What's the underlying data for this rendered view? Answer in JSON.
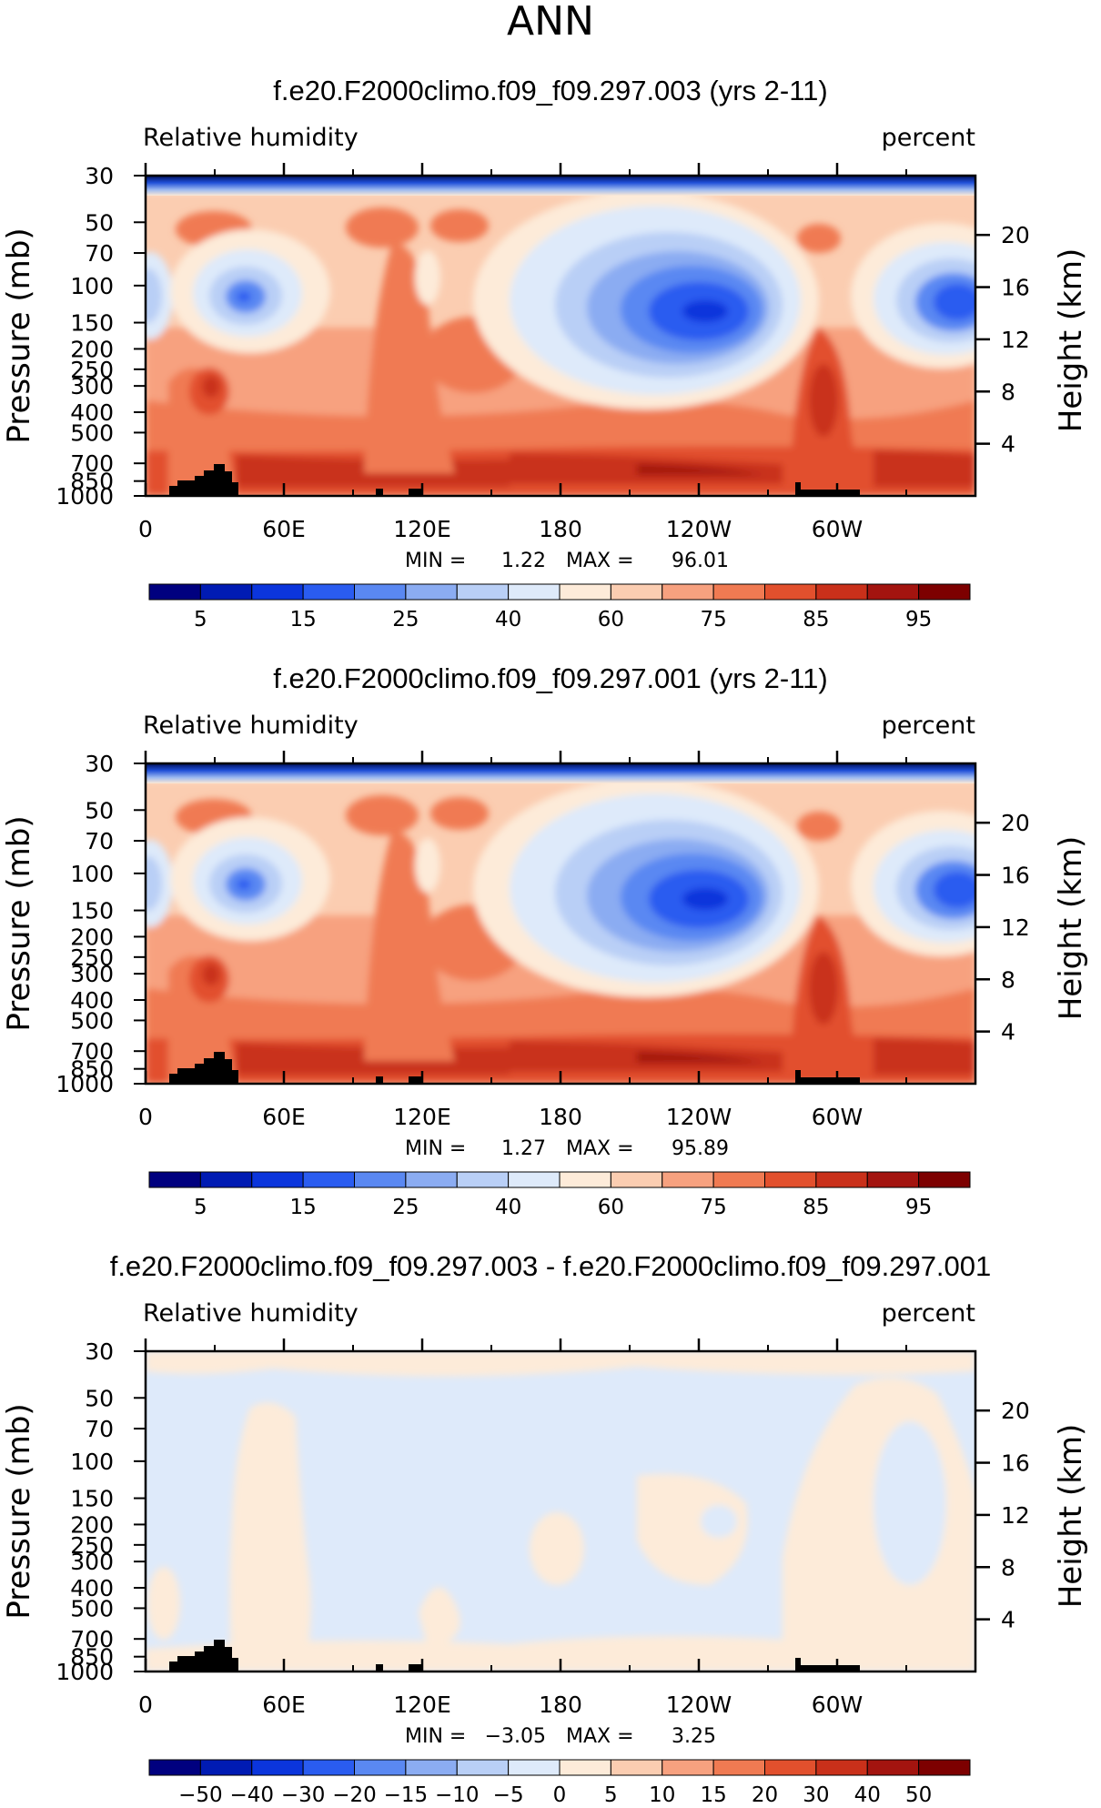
{
  "page_title": "ANN",
  "chart_data": [
    {
      "type": "heatmap",
      "title": "f.e20.F2000climo.f09_f09.297.003 (yrs 2-11)",
      "left_label": "Relative humidity",
      "right_label": "percent",
      "ylabel": "Pressure (mb)",
      "ylabel_right": "Height (km)",
      "x_ticks": [
        "0",
        "60E",
        "120E",
        "180",
        "120W",
        "60W"
      ],
      "y_ticks": [
        "30",
        "50",
        "70",
        "100",
        "150",
        "200",
        "250",
        "300",
        "400",
        "500",
        "700",
        "850",
        "1000"
      ],
      "y_ticks_right": [
        "20",
        "16",
        "12",
        "8",
        "4"
      ],
      "min_label": "MIN =",
      "min_value": "1.22",
      "max_label": "MAX =",
      "max_value": "96.01",
      "colorbar_ticks": [
        "5",
        "15",
        "25",
        "40",
        "60",
        "75",
        "85",
        "95"
      ],
      "colorbar_colors": [
        "#00007f",
        "#001bb3",
        "#0b35dc",
        "#2a5cf0",
        "#5a88f2",
        "#8bacf2",
        "#b9cff6",
        "#deeafa",
        "#fdebd9",
        "#fbcdb1",
        "#f7a17f",
        "#f07a52",
        "#e2502d",
        "#c9301a",
        "#a3140f",
        "#7d0000"
      ]
    },
    {
      "type": "heatmap",
      "title": "f.e20.F2000climo.f09_f09.297.001 (yrs 2-11)",
      "left_label": "Relative humidity",
      "right_label": "percent",
      "ylabel": "Pressure (mb)",
      "ylabel_right": "Height (km)",
      "x_ticks": [
        "0",
        "60E",
        "120E",
        "180",
        "120W",
        "60W"
      ],
      "y_ticks": [
        "30",
        "50",
        "70",
        "100",
        "150",
        "200",
        "250",
        "300",
        "400",
        "500",
        "700",
        "850",
        "1000"
      ],
      "y_ticks_right": [
        "20",
        "16",
        "12",
        "8",
        "4"
      ],
      "min_label": "MIN =",
      "min_value": "1.27",
      "max_label": "MAX =",
      "max_value": "95.89",
      "colorbar_ticks": [
        "5",
        "15",
        "25",
        "40",
        "60",
        "75",
        "85",
        "95"
      ],
      "colorbar_colors": [
        "#00007f",
        "#001bb3",
        "#0b35dc",
        "#2a5cf0",
        "#5a88f2",
        "#8bacf2",
        "#b9cff6",
        "#deeafa",
        "#fdebd9",
        "#fbcdb1",
        "#f7a17f",
        "#f07a52",
        "#e2502d",
        "#c9301a",
        "#a3140f",
        "#7d0000"
      ]
    },
    {
      "type": "heatmap",
      "title": "f.e20.F2000climo.f09_f09.297.003 - f.e20.F2000climo.f09_f09.297.001",
      "left_label": "Relative humidity",
      "right_label": "percent",
      "ylabel": "Pressure (mb)",
      "ylabel_right": "Height (km)",
      "x_ticks": [
        "0",
        "60E",
        "120E",
        "180",
        "120W",
        "60W"
      ],
      "y_ticks": [
        "30",
        "50",
        "70",
        "100",
        "150",
        "200",
        "250",
        "300",
        "400",
        "500",
        "700",
        "850",
        "1000"
      ],
      "y_ticks_right": [
        "20",
        "16",
        "12",
        "8",
        "4"
      ],
      "min_label": "MIN =",
      "min_value": "−3.05",
      "max_label": "MAX =",
      "max_value": "3.25",
      "colorbar_ticks": [
        "−50",
        "−40",
        "−30",
        "−20",
        "−15",
        "−10",
        "−5",
        "0",
        "5",
        "10",
        "15",
        "20",
        "30",
        "40",
        "50"
      ],
      "colorbar_colors": [
        "#00007f",
        "#001bb3",
        "#0b35dc",
        "#2a5cf0",
        "#5a88f2",
        "#8bacf2",
        "#b9cff6",
        "#deeafa",
        "#fdebd9",
        "#fbcdb1",
        "#f7a17f",
        "#f07a52",
        "#e2502d",
        "#c9301a",
        "#a3140f",
        "#7d0000"
      ]
    }
  ]
}
